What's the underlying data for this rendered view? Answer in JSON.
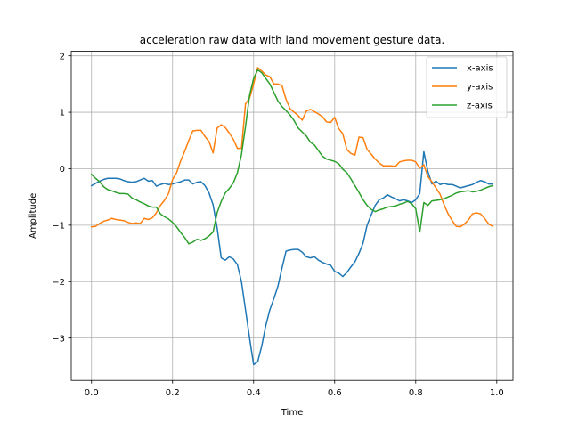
{
  "chart_data": {
    "type": "line",
    "title": "acceleration raw data with land movement gesture data.",
    "xlabel": "Time",
    "ylabel": "Amplitude",
    "xlim": [
      -0.05,
      1.04
    ],
    "ylim": [
      -3.75,
      2.08
    ],
    "xticks": [
      0.0,
      0.2,
      0.4,
      0.6,
      0.8,
      1.0
    ],
    "xtick_labels": [
      "0.0",
      "0.2",
      "0.4",
      "0.6",
      "0.8",
      "1.0"
    ],
    "yticks": [
      2,
      1,
      0,
      -1,
      -2,
      -3
    ],
    "ytick_labels": [
      "2",
      "1",
      "0",
      "−1",
      "−2",
      "−3"
    ],
    "grid": true,
    "legend_position": "upper right",
    "x": [
      0.0,
      0.01,
      0.02,
      0.03,
      0.04,
      0.05,
      0.06,
      0.07,
      0.08,
      0.09,
      0.1,
      0.11,
      0.12,
      0.13,
      0.14,
      0.15,
      0.16,
      0.17,
      0.18,
      0.19,
      0.2,
      0.21,
      0.22,
      0.23,
      0.24,
      0.25,
      0.26,
      0.27,
      0.28,
      0.29,
      0.3,
      0.31,
      0.32,
      0.33,
      0.34,
      0.35,
      0.36,
      0.37,
      0.38,
      0.39,
      0.4,
      0.41,
      0.42,
      0.43,
      0.44,
      0.45,
      0.46,
      0.47,
      0.48,
      0.49,
      0.5,
      0.51,
      0.52,
      0.53,
      0.54,
      0.55,
      0.56,
      0.57,
      0.58,
      0.59,
      0.6,
      0.61,
      0.62,
      0.63,
      0.64,
      0.65,
      0.66,
      0.67,
      0.68,
      0.69,
      0.7,
      0.71,
      0.72,
      0.73,
      0.74,
      0.75,
      0.76,
      0.77,
      0.78,
      0.79,
      0.8,
      0.81,
      0.82,
      0.83,
      0.84,
      0.85,
      0.86,
      0.87,
      0.88,
      0.89,
      0.9,
      0.91,
      0.92,
      0.93,
      0.94,
      0.95,
      0.96,
      0.97,
      0.98,
      0.99
    ],
    "series": [
      {
        "name": "x-axis",
        "color": "#1f77b4",
        "values": [
          -0.3,
          -0.26,
          -0.22,
          -0.19,
          -0.17,
          -0.17,
          -0.17,
          -0.18,
          -0.21,
          -0.23,
          -0.24,
          -0.23,
          -0.2,
          -0.17,
          -0.22,
          -0.21,
          -0.31,
          -0.28,
          -0.26,
          -0.28,
          -0.27,
          -0.25,
          -0.23,
          -0.2,
          -0.2,
          -0.27,
          -0.24,
          -0.23,
          -0.3,
          -0.43,
          -0.64,
          -1.05,
          -1.58,
          -1.62,
          -1.56,
          -1.6,
          -1.7,
          -2.0,
          -2.5,
          -3.0,
          -3.47,
          -3.42,
          -3.14,
          -2.78,
          -2.5,
          -2.3,
          -2.08,
          -1.76,
          -1.46,
          -1.44,
          -1.43,
          -1.43,
          -1.48,
          -1.56,
          -1.58,
          -1.56,
          -1.62,
          -1.66,
          -1.69,
          -1.71,
          -1.82,
          -1.85,
          -1.91,
          -1.84,
          -1.74,
          -1.65,
          -1.5,
          -1.32,
          -1.0,
          -0.82,
          -0.65,
          -0.55,
          -0.52,
          -0.46,
          -0.5,
          -0.53,
          -0.57,
          -0.55,
          -0.57,
          -0.6,
          -0.55,
          -0.44,
          0.3,
          -0.05,
          -0.27,
          -0.22,
          -0.28,
          -0.26,
          -0.28,
          -0.28,
          -0.31,
          -0.34,
          -0.32,
          -0.3,
          -0.28,
          -0.24,
          -0.21,
          -0.23,
          -0.27,
          -0.27
        ]
      },
      {
        "name": "y-axis",
        "color": "#ff7f0e",
        "values": [
          -1.03,
          -1.02,
          -0.97,
          -0.93,
          -0.91,
          -0.88,
          -0.9,
          -0.91,
          -0.92,
          -0.95,
          -0.97,
          -0.96,
          -0.97,
          -0.88,
          -0.9,
          -0.87,
          -0.78,
          -0.65,
          -0.56,
          -0.44,
          -0.19,
          -0.07,
          0.14,
          0.31,
          0.5,
          0.67,
          0.68,
          0.68,
          0.57,
          0.48,
          0.28,
          0.72,
          0.78,
          0.73,
          0.63,
          0.52,
          0.36,
          0.36,
          1.15,
          1.25,
          1.5,
          1.79,
          1.73,
          1.66,
          1.63,
          1.5,
          1.5,
          1.47,
          1.23,
          1.06,
          1.0,
          0.94,
          0.86,
          1.02,
          1.05,
          1.01,
          0.97,
          0.92,
          0.83,
          0.82,
          0.91,
          0.71,
          0.62,
          0.34,
          0.27,
          0.24,
          0.56,
          0.55,
          0.34,
          0.26,
          0.17,
          0.1,
          0.05,
          0.05,
          0.05,
          0.04,
          0.12,
          0.14,
          0.15,
          0.15,
          0.12,
          0.01,
          0.07,
          -0.14,
          -0.23,
          -0.34,
          -0.45,
          -0.64,
          -0.8,
          -0.92,
          -1.02,
          -1.03,
          -0.98,
          -0.91,
          -0.8,
          -0.78,
          -0.8,
          -0.88,
          -0.98,
          -1.02
        ]
      },
      {
        "name": "z-axis",
        "color": "#2ca02c",
        "values": [
          -0.1,
          -0.17,
          -0.23,
          -0.32,
          -0.37,
          -0.39,
          -0.42,
          -0.44,
          -0.44,
          -0.45,
          -0.52,
          -0.55,
          -0.59,
          -0.62,
          -0.66,
          -0.68,
          -0.68,
          -0.8,
          -0.85,
          -0.89,
          -0.95,
          -1.03,
          -1.13,
          -1.22,
          -1.33,
          -1.3,
          -1.25,
          -1.27,
          -1.24,
          -1.19,
          -1.12,
          -0.78,
          -0.58,
          -0.43,
          -0.35,
          -0.25,
          -0.07,
          0.25,
          0.75,
          1.3,
          1.6,
          1.75,
          1.7,
          1.6,
          1.5,
          1.35,
          1.2,
          1.1,
          1.03,
          0.95,
          0.85,
          0.72,
          0.65,
          0.58,
          0.47,
          0.42,
          0.32,
          0.22,
          0.17,
          0.15,
          0.13,
          0.09,
          -0.01,
          -0.07,
          -0.18,
          -0.3,
          -0.42,
          -0.55,
          -0.65,
          -0.72,
          -0.76,
          -0.73,
          -0.71,
          -0.68,
          -0.67,
          -0.66,
          -0.63,
          -0.61,
          -0.58,
          -0.62,
          -0.71,
          -1.12,
          -0.6,
          -0.65,
          -0.57,
          -0.56,
          -0.55,
          -0.53,
          -0.5,
          -0.47,
          -0.43,
          -0.41,
          -0.4,
          -0.39,
          -0.41,
          -0.4,
          -0.38,
          -0.35,
          -0.32,
          -0.3
        ]
      }
    ]
  }
}
